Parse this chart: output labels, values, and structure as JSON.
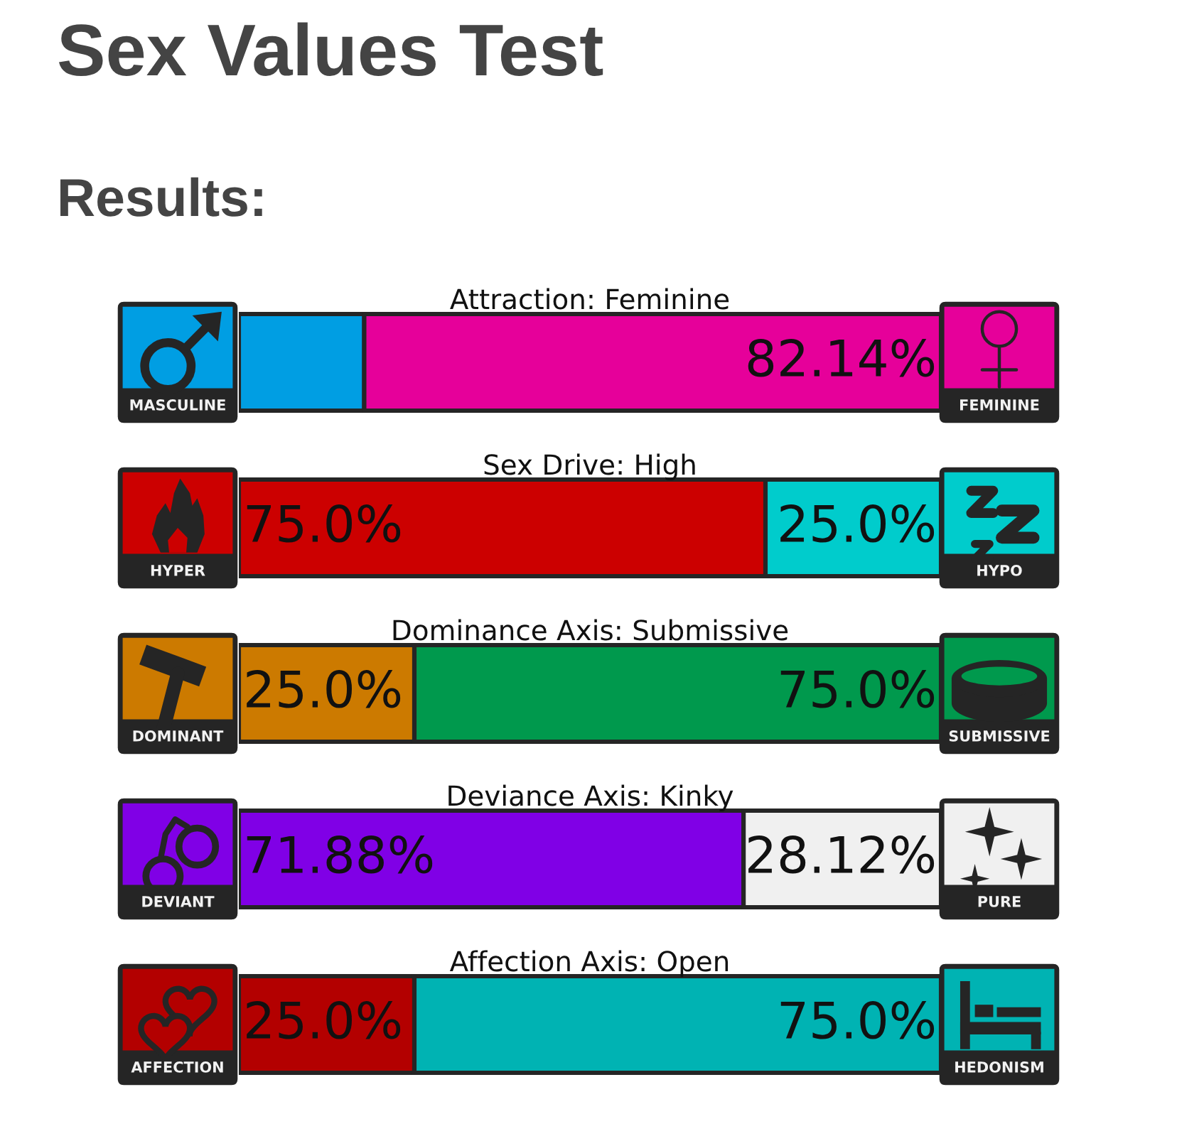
{
  "chart_data": {
    "type": "bar",
    "title": "Sex Values Test",
    "subtitle": "Results:",
    "orientation": "horizontal",
    "stacked": true,
    "categories": [
      "Attraction: Feminine",
      "Sex Drive: High",
      "Dominance Axis: Submissive",
      "Deviance Axis: Kinky",
      "Affection Axis: Open"
    ],
    "series": [
      {
        "values": [
          17.86,
          75.0,
          25.0,
          71.88,
          25.0
        ],
        "colors": [
          "#009ee3",
          "#cc0000",
          "#cc7a00",
          "#8000e6",
          "#b30000"
        ],
        "value_labels": [
          null,
          "75.0%",
          "25.0%",
          "71.88%",
          "25.0%"
        ]
      },
      {
        "values": [
          82.14,
          25.0,
          75.0,
          28.12,
          75.0
        ],
        "colors": [
          "#e6009a",
          "#00cccc",
          "#00994d",
          "#f0f0f0",
          "#00b3b3"
        ],
        "value_labels": [
          "82.14%",
          "25.0%",
          "75.0%",
          "28.12%",
          "75.0%"
        ]
      }
    ],
    "xlim": [
      0,
      100
    ],
    "tick_labels": "y",
    "annotations": [
      "MASCULINE",
      "FEMININE",
      "HYPER",
      "HYPO",
      "DOMINANT",
      "SUBMISSIVE",
      "DEVIANT",
      "PURE",
      "AFFECTION",
      "HEDONISM"
    ]
  }
}
